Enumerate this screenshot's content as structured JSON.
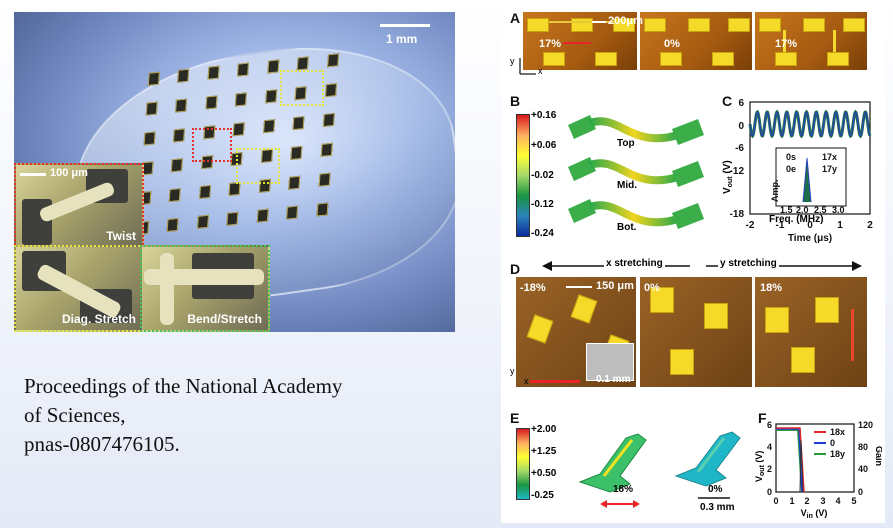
{
  "photo": {
    "scale_bar_label": "1 mm",
    "inset_scale_label": "100 μm",
    "insets": [
      "Twist",
      "Diag. Stretch",
      "Bend/Stretch"
    ]
  },
  "citation": {
    "line1": "Proceedings  of the National Academy",
    "line2": "of Sciences,",
    "line3": "pnas-0807476105."
  },
  "figure": {
    "panelA": {
      "label": "A",
      "scale": "200μm",
      "strains": [
        "17%",
        "0%",
        "17%"
      ],
      "axis_y": "y",
      "axis_x": "x"
    },
    "panelB": {
      "label": "B",
      "colorbar": [
        "+0.16",
        "+0.06",
        "-0.02",
        "-0.12",
        "-0.24"
      ],
      "layers": [
        "Top",
        "Mid.",
        "Bot."
      ],
      "colors": [
        "#d7191c",
        "#fdae61",
        "#ffff33",
        "#a6d96a",
        "#1a9641",
        "#2b83ba",
        "#0b2a9e"
      ]
    },
    "panelC": {
      "label": "C",
      "xlabel": "Time (μs)",
      "ylabel": "V",
      "ylabel_sub": "out",
      "ylabel_unit": " (V)",
      "xticks": [
        "-2",
        "-1",
        "0",
        "1",
        "2"
      ],
      "yticks": [
        "6",
        "0",
        "-6",
        "-12",
        "-18"
      ],
      "inset": {
        "xlabel": "Freq. (MHz)",
        "ylabel": "Amp.",
        "xticks": [
          "1.5",
          "2.0",
          "2.5",
          "3.0"
        ],
        "legend": [
          "0s",
          "0e",
          "17x",
          "17y"
        ]
      }
    },
    "panelD": {
      "label": "D",
      "x_stretch": "x stretching",
      "y_stretch": "y stretching",
      "strains": [
        "-18%",
        "0%",
        "18%"
      ],
      "scale": "150 μm",
      "inset_scale": "0.1 mm",
      "axis_y": "y",
      "axis_x": "x"
    },
    "panelE": {
      "label": "E",
      "colorbar": [
        "+2.00",
        "+1.25",
        "+0.50",
        "-0.25"
      ],
      "strain_left": "18%",
      "strain_right": "0%",
      "scale": "0.3 mm"
    },
    "panelF": {
      "label": "F",
      "xlabel": "V",
      "xlabel_sub": "in",
      "xlabel_unit": " (V)",
      "ylabel": "V",
      "ylabel_sub": "out",
      "ylabel_unit": " (V)",
      "ylabel_right": "Gain",
      "xticks": [
        "0",
        "1",
        "2",
        "3",
        "4",
        "5"
      ],
      "yticks_left": [
        "0",
        "2",
        "4",
        "6"
      ],
      "yticks_right": [
        "0",
        "40",
        "80",
        "120"
      ],
      "legend": [
        {
          "name": "18x",
          "color": "#e0272c"
        },
        {
          "name": "0",
          "color": "#1f3fd6"
        },
        {
          "name": "18y",
          "color": "#2a9a3a"
        }
      ]
    }
  }
}
